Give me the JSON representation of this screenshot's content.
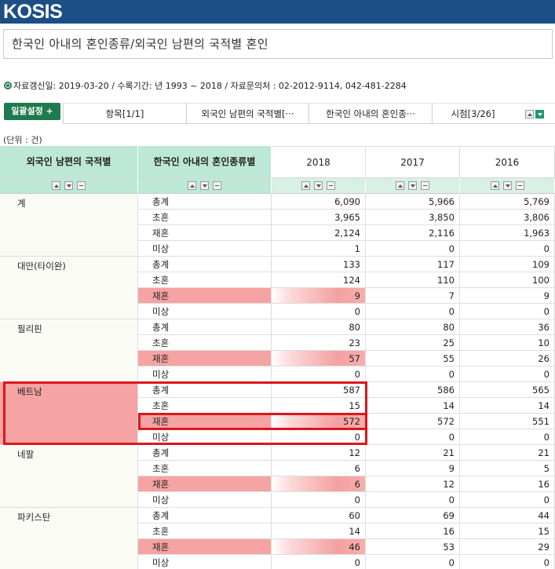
{
  "app": {
    "logo": "KOSIS"
  },
  "page": {
    "title": "한국인 아내의 혼인종류/외국인 남편의 국적별 혼인",
    "info": "자료갱신일: 2019-03-20 / 수록기간: 년 1993 ~ 2018 / 자료문의처 : 02-2012-9114, 042-481-2284",
    "unit": "(단위 : 건)"
  },
  "toolbar": {
    "setting_label": "일괄설정 +",
    "tabs": [
      {
        "label": "항목[1/1]"
      },
      {
        "label": "외국인 남편의 국적별[···"
      },
      {
        "label": "한국인 아내의 혼인종···"
      },
      {
        "label": "시점[3/26]"
      }
    ]
  },
  "table": {
    "col_headers": {
      "nationality": "외국인 남편의 국적별",
      "type": "한국인 아내의 혼인종류별",
      "years": [
        "2018",
        "2017",
        "2016"
      ]
    },
    "groups": [
      {
        "name": "계",
        "rows": [
          {
            "type": "총계",
            "values": [
              "6,090",
              "5,966",
              "5,769"
            ]
          },
          {
            "type": "초혼",
            "values": [
              "3,965",
              "3,850",
              "3,806"
            ]
          },
          {
            "type": "재혼",
            "values": [
              "2,124",
              "2,116",
              "1,963"
            ]
          },
          {
            "type": "미상",
            "values": [
              "1",
              "0",
              "0"
            ]
          }
        ]
      },
      {
        "name": "대만(타이완)",
        "rows": [
          {
            "type": "총계",
            "values": [
              "133",
              "117",
              "109"
            ]
          },
          {
            "type": "초혼",
            "values": [
              "124",
              "110",
              "100"
            ]
          },
          {
            "type": "재혼",
            "values": [
              "9",
              "7",
              "9"
            ]
          },
          {
            "type": "미상",
            "values": [
              "0",
              "0",
              "0"
            ]
          }
        ]
      },
      {
        "name": "필리핀",
        "rows": [
          {
            "type": "총계",
            "values": [
              "80",
              "80",
              "36"
            ]
          },
          {
            "type": "초혼",
            "values": [
              "23",
              "25",
              "10"
            ]
          },
          {
            "type": "재혼",
            "values": [
              "57",
              "55",
              "26"
            ]
          },
          {
            "type": "미상",
            "values": [
              "0",
              "0",
              "0"
            ]
          }
        ]
      },
      {
        "name": "베트남",
        "rows": [
          {
            "type": "총계",
            "values": [
              "587",
              "586",
              "565"
            ]
          },
          {
            "type": "초혼",
            "values": [
              "15",
              "14",
              "14"
            ]
          },
          {
            "type": "재혼",
            "values": [
              "572",
              "572",
              "551"
            ]
          },
          {
            "type": "미상",
            "values": [
              "0",
              "0",
              "0"
            ]
          }
        ]
      },
      {
        "name": "네팔",
        "rows": [
          {
            "type": "총계",
            "values": [
              "12",
              "21",
              "21"
            ]
          },
          {
            "type": "초혼",
            "values": [
              "6",
              "9",
              "5"
            ]
          },
          {
            "type": "재혼",
            "values": [
              "6",
              "12",
              "16"
            ]
          },
          {
            "type": "미상",
            "values": [
              "0",
              "0",
              "0"
            ]
          }
        ]
      },
      {
        "name": "파키스탄",
        "rows": [
          {
            "type": "총계",
            "values": [
              "60",
              "69",
              "44"
            ]
          },
          {
            "type": "초혼",
            "values": [
              "14",
              "16",
              "15"
            ]
          },
          {
            "type": "재혼",
            "values": [
              "46",
              "53",
              "29"
            ]
          },
          {
            "type": "미상",
            "values": [
              "0",
              "0",
              "0"
            ]
          }
        ]
      }
    ]
  }
}
